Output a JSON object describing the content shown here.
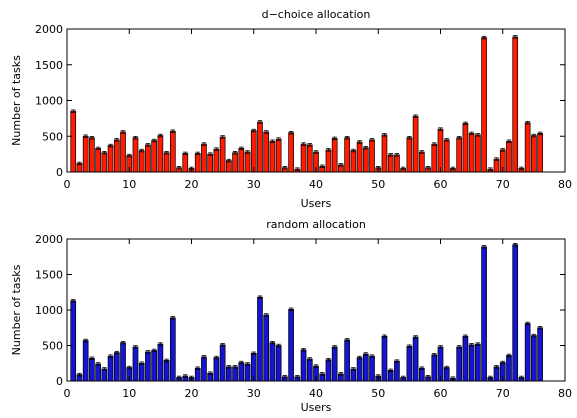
{
  "chart_data": [
    {
      "type": "bar",
      "title": "d−choice allocation",
      "xlabel": "Users",
      "ylabel": "Number of tasks",
      "xlim": [
        0,
        80
      ],
      "ylim": [
        0,
        2000
      ],
      "xticks": [
        0,
        10,
        20,
        30,
        40,
        50,
        60,
        70,
        80
      ],
      "yticks": [
        0,
        500,
        1000,
        1500,
        2000
      ],
      "error_bars": true,
      "grid": false,
      "color": "#ff1a00",
      "x": [
        1,
        2,
        3,
        4,
        5,
        6,
        7,
        8,
        9,
        10,
        11,
        12,
        13,
        14,
        15,
        16,
        17,
        18,
        19,
        20,
        21,
        22,
        23,
        24,
        25,
        26,
        27,
        28,
        29,
        30,
        31,
        32,
        33,
        34,
        35,
        36,
        37,
        38,
        39,
        40,
        41,
        42,
        43,
        44,
        45,
        46,
        47,
        48,
        49,
        50,
        51,
        52,
        53,
        54,
        55,
        56,
        57,
        58,
        59,
        60,
        61,
        62,
        63,
        64,
        65,
        66,
        67,
        68,
        69,
        70,
        71,
        72,
        73,
        74,
        75,
        76
      ],
      "values": [
        850,
        120,
        500,
        480,
        330,
        270,
        370,
        450,
        560,
        230,
        480,
        300,
        380,
        440,
        510,
        270,
        570,
        60,
        260,
        50,
        260,
        390,
        250,
        320,
        490,
        160,
        270,
        330,
        280,
        580,
        700,
        560,
        430,
        460,
        60,
        550,
        40,
        390,
        380,
        280,
        80,
        310,
        470,
        100,
        480,
        300,
        420,
        340,
        450,
        60,
        520,
        240,
        240,
        50,
        480,
        780,
        280,
        60,
        390,
        600,
        450,
        50,
        480,
        680,
        540,
        520,
        1880,
        40,
        180,
        310,
        430,
        1890,
        50,
        690,
        510,
        540
      ]
    },
    {
      "type": "bar",
      "title": "random allocation",
      "xlabel": "Users",
      "ylabel": "Number of tasks",
      "xlim": [
        0,
        80
      ],
      "ylim": [
        0,
        2000
      ],
      "xticks": [
        0,
        10,
        20,
        30,
        40,
        50,
        60,
        70,
        80
      ],
      "yticks": [
        0,
        500,
        1000,
        1500,
        2000
      ],
      "error_bars": true,
      "grid": false,
      "color": "#1414d2",
      "x": [
        1,
        2,
        3,
        4,
        5,
        6,
        7,
        8,
        9,
        10,
        11,
        12,
        13,
        14,
        15,
        16,
        17,
        18,
        19,
        20,
        21,
        22,
        23,
        24,
        25,
        26,
        27,
        28,
        29,
        30,
        31,
        32,
        33,
        34,
        35,
        36,
        37,
        38,
        39,
        40,
        41,
        42,
        43,
        44,
        45,
        46,
        47,
        48,
        49,
        50,
        51,
        52,
        53,
        54,
        55,
        56,
        57,
        58,
        59,
        60,
        61,
        62,
        63,
        64,
        65,
        66,
        67,
        68,
        69,
        70,
        71,
        72,
        73,
        74,
        75,
        76
      ],
      "values": [
        1130,
        90,
        570,
        320,
        240,
        170,
        350,
        400,
        540,
        190,
        480,
        250,
        410,
        430,
        520,
        290,
        890,
        50,
        70,
        50,
        180,
        340,
        110,
        330,
        510,
        200,
        200,
        260,
        240,
        390,
        1180,
        930,
        540,
        500,
        60,
        1010,
        60,
        440,
        310,
        210,
        100,
        300,
        480,
        100,
        580,
        170,
        330,
        380,
        350,
        70,
        630,
        150,
        280,
        50,
        490,
        620,
        180,
        60,
        370,
        480,
        190,
        40,
        480,
        630,
        510,
        520,
        1890,
        50,
        200,
        260,
        360,
        1920,
        50,
        810,
        640,
        750
      ]
    }
  ]
}
